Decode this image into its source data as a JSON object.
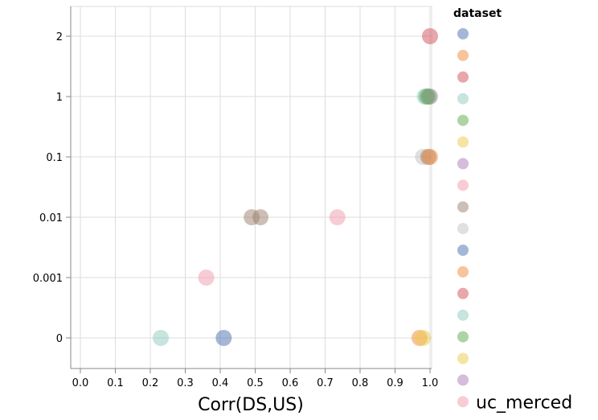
{
  "chart_data": {
    "type": "scatter",
    "title": "",
    "xlabel": "Corr(DS,US)",
    "ylabel": "",
    "xlim": [
      0.0,
      1.0
    ],
    "x_ticks": [
      "0.0",
      "0.1",
      "0.2",
      "0.3",
      "0.4",
      "0.5",
      "0.6",
      "0.7",
      "0.8",
      "0.9",
      "1.0"
    ],
    "y_scale": "categorical",
    "y_ticks": [
      "2",
      "1",
      "0.1",
      "0.01",
      "0.001",
      "0"
    ],
    "grid": true,
    "legend": {
      "title": "dataset",
      "placement": "right",
      "labels": [
        "",
        "",
        "",
        "",
        "",
        "",
        "",
        "",
        "",
        "",
        "",
        "",
        "",
        "",
        "",
        "",
        "",
        "uc_merced"
      ],
      "colors": [
        "#4c6fb0",
        "#f08a3a",
        "#d24f55",
        "#8fc9c0",
        "#5da84c",
        "#edc949",
        "#ab7ab5",
        "#f29aab",
        "#9c7f6b",
        "#c2c2c2",
        "#4c6fb0",
        "#f08a3a",
        "#d24f55",
        "#8fc9c0",
        "#5da84c",
        "#edc949",
        "#ab7ab5",
        "#f29aab"
      ]
    },
    "points": [
      {
        "x": 1.0,
        "y": "2",
        "color": "#d24f55"
      },
      {
        "x": 0.99,
        "y": "1",
        "color": "#5da84c"
      },
      {
        "x": 0.985,
        "y": "1",
        "color": "#8fc9c0"
      },
      {
        "x": 1.0,
        "y": "1",
        "color": "#ab7ab5"
      },
      {
        "x": 0.995,
        "y": "1",
        "color": "#5da84c"
      },
      {
        "x": 0.98,
        "y": "0.1",
        "color": "#c2c2c2"
      },
      {
        "x": 0.995,
        "y": "0.1",
        "color": "#9c7f6b"
      },
      {
        "x": 1.0,
        "y": "0.1",
        "color": "#f08a3a"
      },
      {
        "x": 0.49,
        "y": "0.01",
        "color": "#9c7f6b"
      },
      {
        "x": 0.515,
        "y": "0.01",
        "color": "#9c7f6b"
      },
      {
        "x": 0.735,
        "y": "0.01",
        "color": "#f29aab"
      },
      {
        "x": 0.36,
        "y": "0.001",
        "color": "#f29aab"
      },
      {
        "x": 0.23,
        "y": "0",
        "color": "#8fc9c0"
      },
      {
        "x": 0.41,
        "y": "0",
        "color": "#4c6fb0"
      },
      {
        "x": 0.97,
        "y": "0",
        "color": "#f08a3a"
      },
      {
        "x": 0.98,
        "y": "0",
        "color": "#edc949"
      }
    ]
  }
}
